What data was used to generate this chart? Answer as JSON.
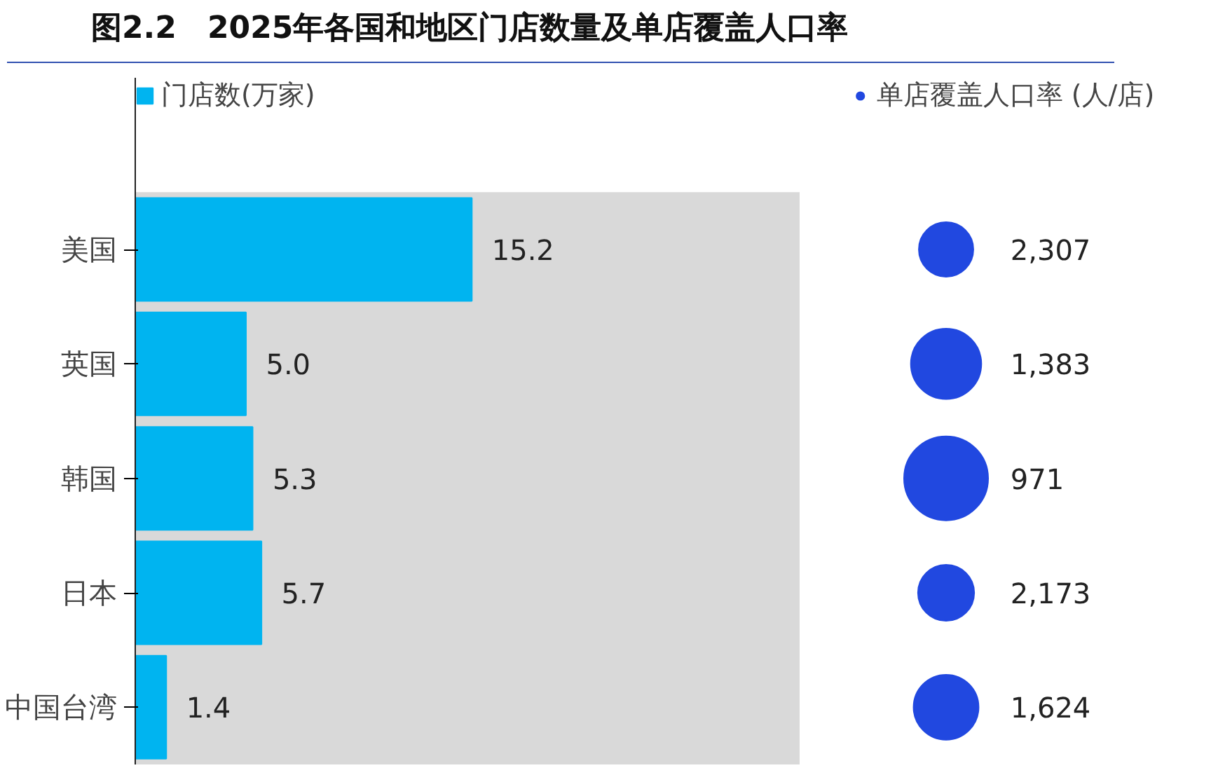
{
  "chart_data": [
    {
      "type": "bar",
      "orientation": "horizontal",
      "title": "图2.2　2025年各国和地区门店数量及单店覆盖人口率",
      "categories": [
        "美国",
        "英国",
        "韩国",
        "日本",
        "中国台湾"
      ],
      "series": [
        {
          "name": "门店数(万家)",
          "color": "#00b4f0",
          "values": [
            15.2,
            5.0,
            5.3,
            5.7,
            1.4
          ],
          "value_labels": [
            "15.2",
            "5.0",
            "5.3",
            "5.7",
            "1.4"
          ]
        }
      ],
      "xlim": [
        0,
        30
      ],
      "tick_labels": "y",
      "legend": "top left",
      "bands": [
        {
          "axis": "x",
          "from": 0,
          "to": 30,
          "color": "#d9d9d9"
        }
      ]
    },
    {
      "type": "other",
      "categories": [
        null,
        null,
        null,
        null,
        null
      ],
      "legend": "top",
      "series": [
        {
          "name": "单店覆盖人口率 (人/店)",
          "color": "#2148e0",
          "values": [
            2307,
            1383,
            971,
            2173,
            1624
          ],
          "value_labels": [
            "2,307",
            "1,383",
            "971",
            "2,173",
            "1,624"
          ]
        }
      ]
    }
  ]
}
